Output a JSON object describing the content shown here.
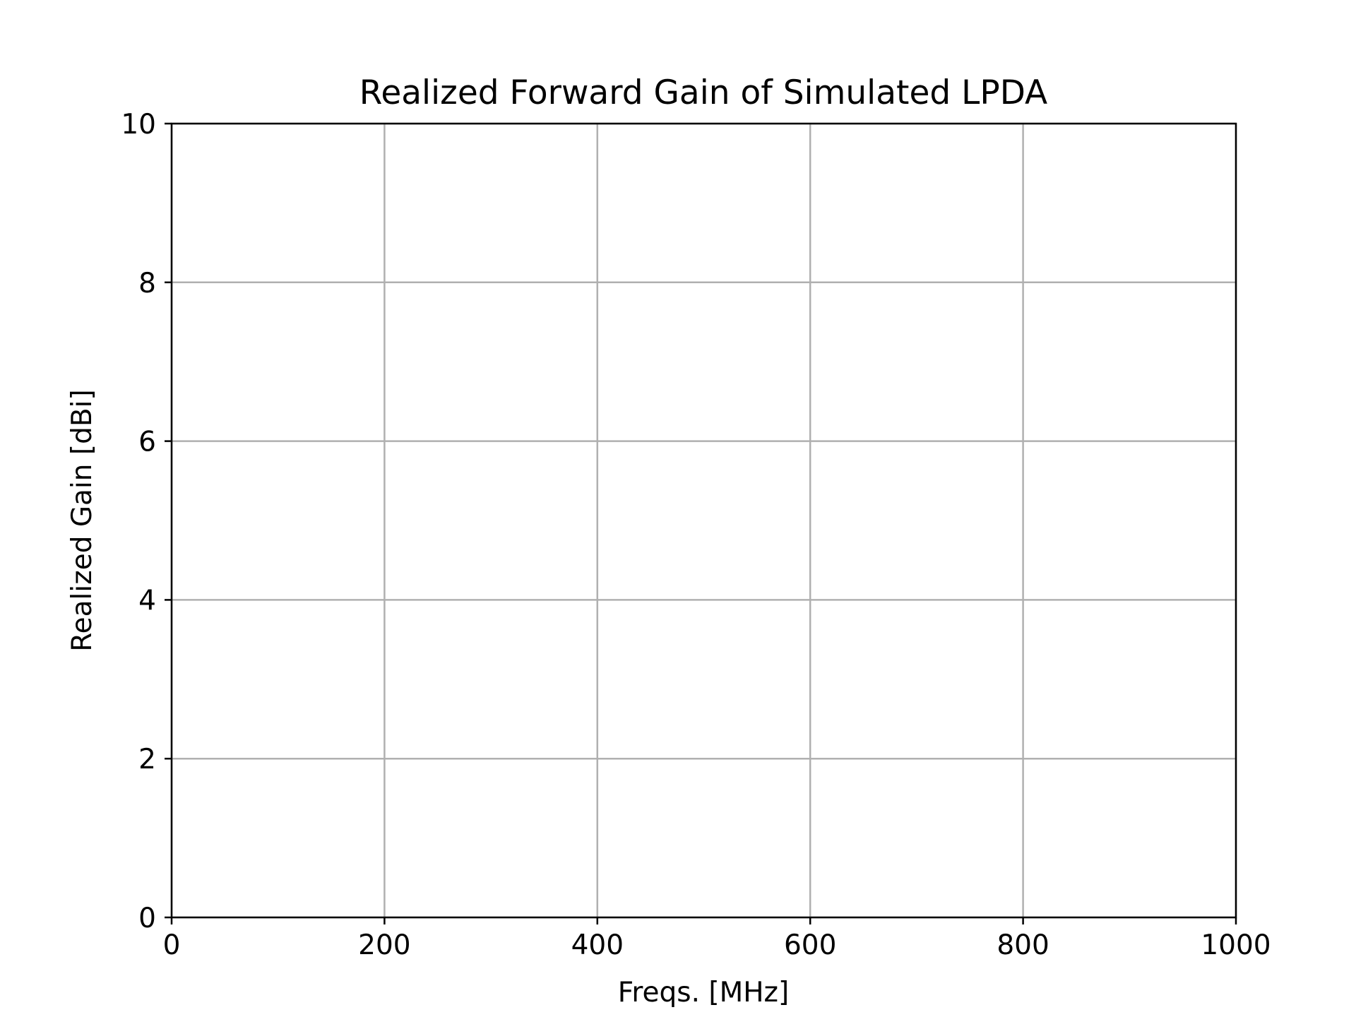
{
  "chart_data": {
    "type": "line",
    "title": "Realized Forward Gain of Simulated LPDA",
    "xlabel": "Freqs. [MHz]",
    "ylabel": "Realized Gain [dBi]",
    "xlim": [
      0,
      1000
    ],
    "ylim": [
      0,
      10
    ],
    "xticks": [
      0,
      200,
      400,
      600,
      800,
      1000
    ],
    "yticks": [
      0,
      2,
      4,
      6,
      8,
      10
    ],
    "xtick_labels": [
      "0",
      "200",
      "400",
      "600",
      "800",
      "1000"
    ],
    "ytick_labels": [
      "0",
      "2",
      "4",
      "6",
      "8",
      "10"
    ],
    "grid": true,
    "series": []
  },
  "colors": {
    "grid": "#b0b0b0",
    "axes": "#000000",
    "background": "#ffffff"
  }
}
